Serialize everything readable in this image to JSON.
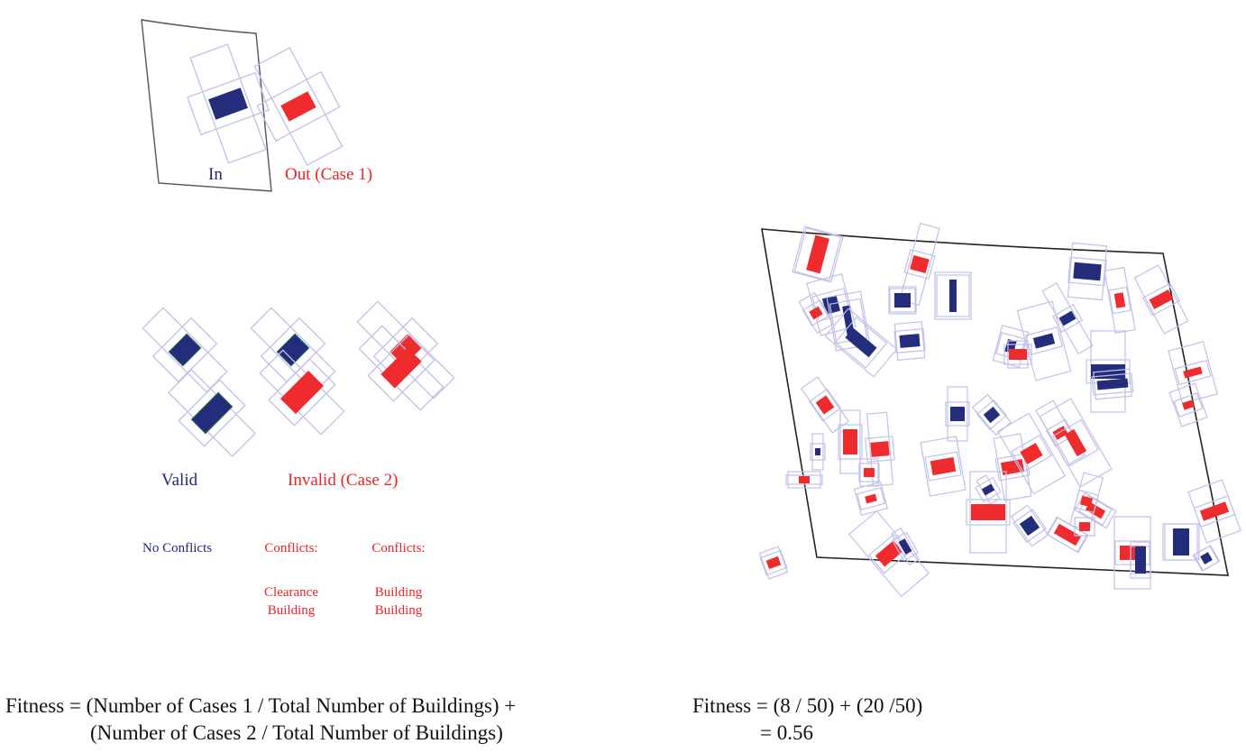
{
  "colors": {
    "in_blue": "#232d7c",
    "out_red": "#ef2b2d",
    "outline": "#c2c0e8",
    "boundary": "#222222"
  },
  "legend": {
    "in_label": "In",
    "out_label": "Out (Case 1)",
    "valid_label": "Valid",
    "invalid_label": "Invalid (Case 2)",
    "no_conflicts": "No Conflicts",
    "conflicts_a_title": "Conflicts:",
    "conflicts_a_line1": "Clearance",
    "conflicts_a_line2": "Building",
    "conflicts_b_title": "Conflicts:",
    "conflicts_b_line1": "Building",
    "conflicts_b_line2": "Building"
  },
  "formula": {
    "general_line1": "Fitness = (Number of Cases 1 / Total Number of Buildings) +",
    "general_line2": "(Number of Cases 2 / Total Number of Buildings)",
    "example_line1": "Fitness = (8 / 50) + (20 /50)",
    "example_line2": "= 0.56"
  }
}
